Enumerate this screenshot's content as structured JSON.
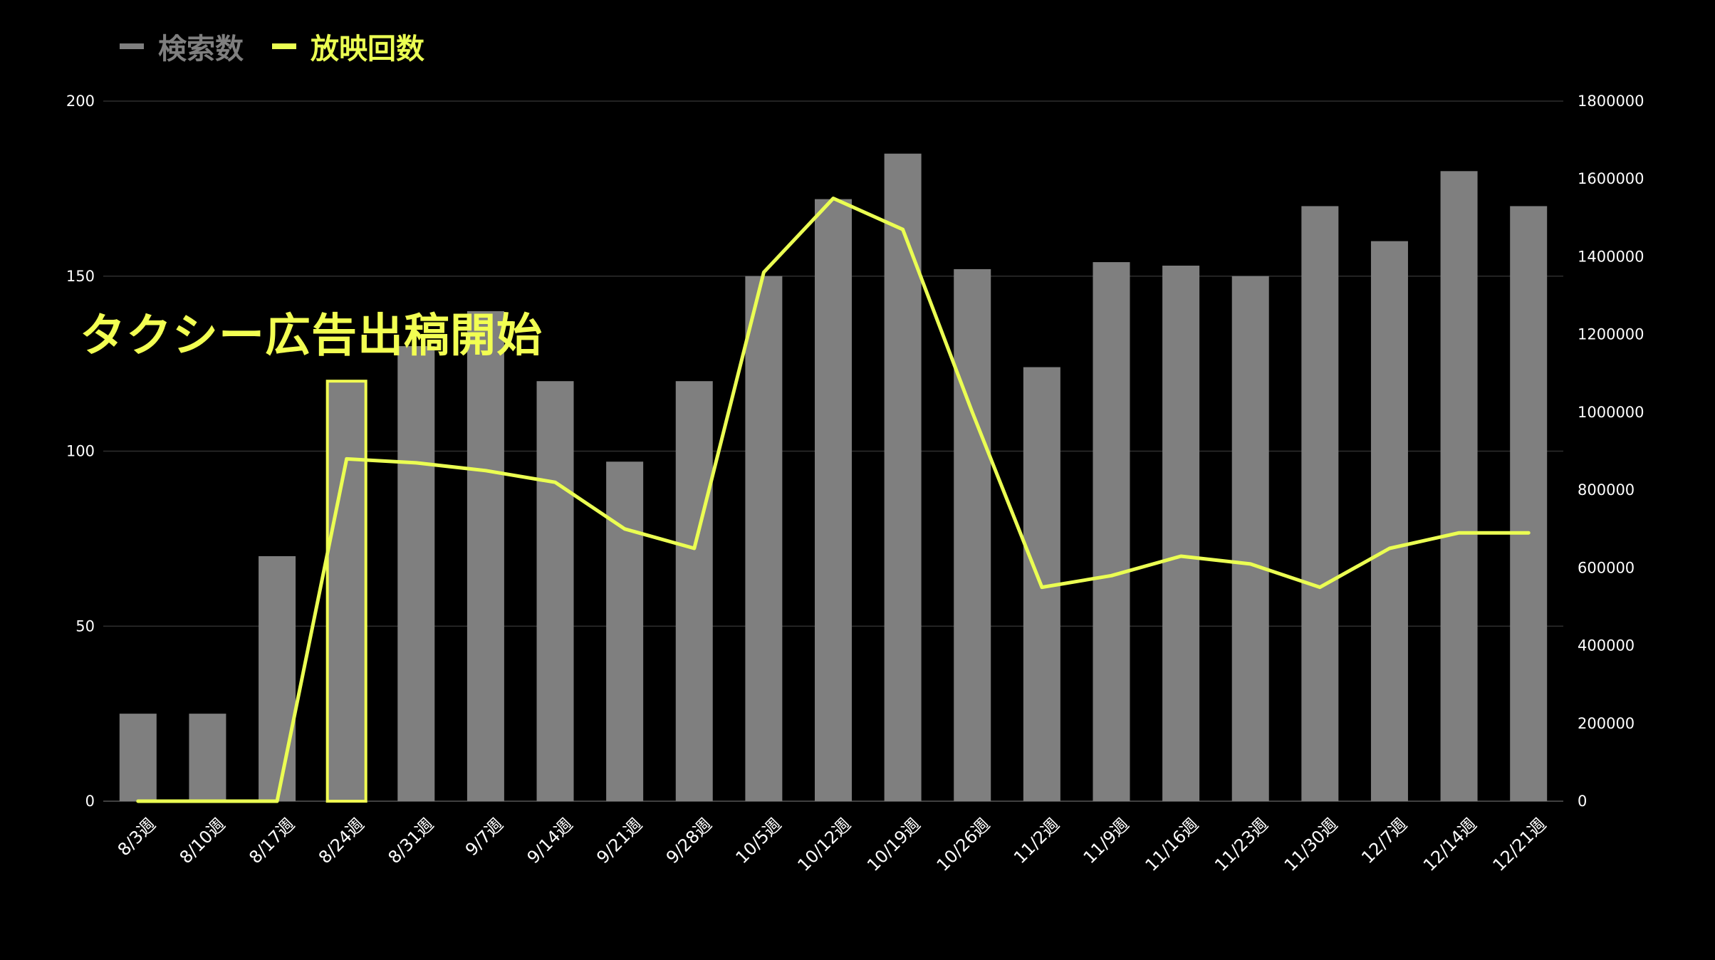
{
  "chart_data": {
    "type": "bar",
    "title": "",
    "xlabel": "",
    "ylabel": "",
    "categories": [
      "8/3週",
      "8/10週",
      "8/17週",
      "8/24週",
      "8/31週",
      "9/7週",
      "9/14週",
      "9/21週",
      "9/28週",
      "10/5週",
      "10/12週",
      "10/19週",
      "10/26週",
      "11/2週",
      "11/9週",
      "11/16週",
      "11/23週",
      "11/30週",
      "12/7週",
      "12/14週",
      "12/21週"
    ],
    "series": [
      {
        "name": "検索数",
        "type": "bar",
        "axis": "left",
        "color": "#7f7f7f",
        "values": [
          25,
          25,
          70,
          120,
          130,
          140,
          120,
          97,
          120,
          150,
          172,
          185,
          152,
          124,
          154,
          153,
          150,
          170,
          160,
          180,
          170
        ]
      },
      {
        "name": "放映回数",
        "type": "line",
        "axis": "right",
        "color": "#ebff52",
        "values": [
          0,
          0,
          0,
          880000,
          870000,
          850000,
          820000,
          700000,
          650000,
          1360000,
          1550000,
          1470000,
          1000000,
          550000,
          580000,
          630000,
          610000,
          550000,
          650000,
          690000,
          690000
        ]
      }
    ],
    "y_left": {
      "range": [
        0,
        200
      ],
      "ticks": [
        0,
        50,
        100,
        150,
        200
      ]
    },
    "y_right": {
      "range": [
        0,
        1800000
      ],
      "ticks": [
        0,
        200000,
        400000,
        600000,
        800000,
        1000000,
        1200000,
        1400000,
        1600000,
        1800000
      ]
    },
    "grid": true,
    "legend_position": "top-left",
    "annotation": {
      "text": "タクシー広告出稿開始",
      "highlight_category": "8/24週",
      "color": "#f2ff52"
    }
  }
}
